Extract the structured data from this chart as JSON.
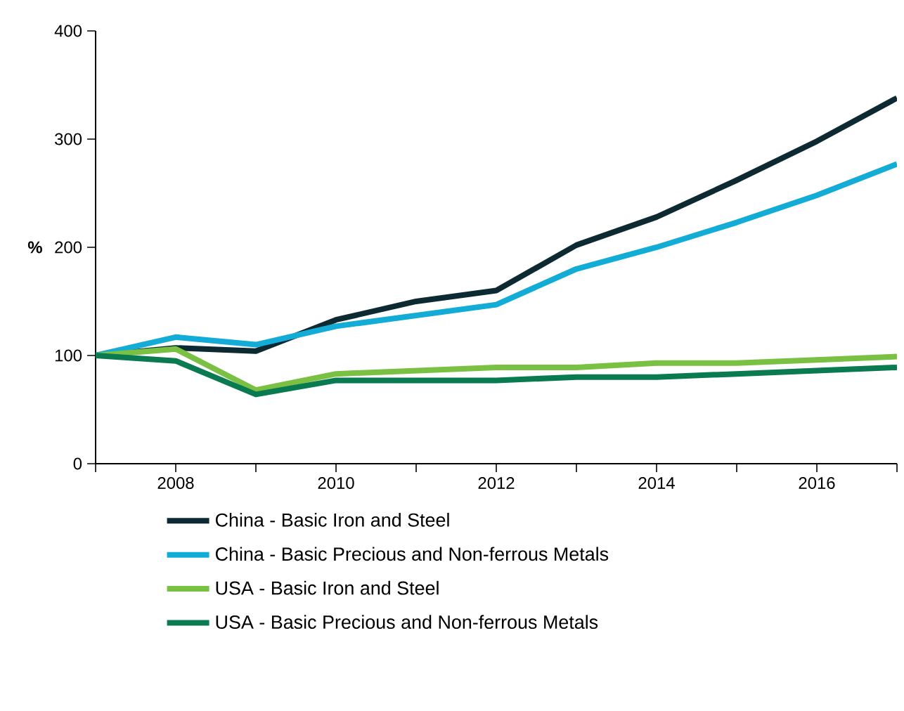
{
  "chart_data": {
    "type": "line",
    "ylabel": "%",
    "x": [
      2007,
      2008,
      2009,
      2010,
      2011,
      2012,
      2013,
      2014,
      2015,
      2016,
      2017
    ],
    "xlim": [
      2007,
      2017
    ],
    "ylim": [
      0,
      400
    ],
    "xticks": [
      {
        "value": 2007,
        "label": null
      },
      2008,
      {
        "value": 2009,
        "label": null
      },
      2010,
      {
        "value": 2011,
        "label": null
      },
      2012,
      {
        "value": 2013,
        "label": null
      },
      2014,
      {
        "value": 2015,
        "label": null
      },
      2016,
      {
        "value": 2017,
        "label": null
      }
    ],
    "yticks": [
      0,
      100,
      200,
      300,
      400
    ],
    "grid": false,
    "legend": "bottom",
    "marker": "none",
    "line_style": "solid",
    "series": [
      {
        "name": "China - Basic Iron and Steel",
        "color": "#0d2a33",
        "values": [
          100,
          107,
          104,
          133,
          150,
          160,
          202,
          228,
          262,
          298,
          338
        ]
      },
      {
        "name": "China - Basic Precious and Non-ferrous Metals",
        "color": "#12acd6",
        "values": [
          100,
          117,
          110,
          127,
          137,
          147,
          180,
          200,
          223,
          248,
          277
        ]
      },
      {
        "name": "USA - Basic Iron and Steel",
        "color": "#7ac143",
        "values": [
          100,
          106,
          68,
          83,
          86,
          89,
          89,
          93,
          93,
          96,
          99
        ]
      },
      {
        "name": "USA - Basic Precious and Non-ferrous Metals",
        "color": "#0a7a50",
        "values": [
          100,
          95,
          64,
          77,
          77,
          77,
          80,
          80,
          83,
          86,
          89
        ]
      }
    ]
  }
}
